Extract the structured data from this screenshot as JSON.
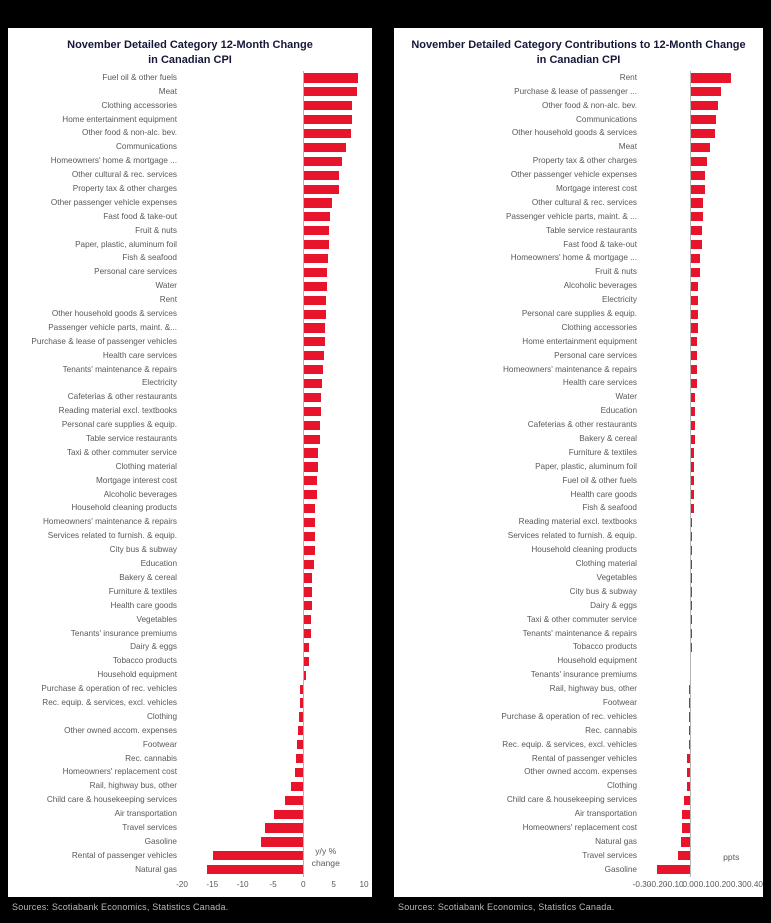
{
  "colors": {
    "bar": "#e8142c",
    "title": "#17173b",
    "label": "#595959",
    "zero_line": "#b3b3b3",
    "source": "#b8b8b8",
    "panel_bg": "#ffffff",
    "page_bg": "#000000"
  },
  "chart_data": [
    {
      "type": "bar",
      "orientation": "horizontal",
      "title": "November Detailed Category 12-Month Change in Canadian CPI",
      "xlabel": "y/y % change",
      "xlabel_lines": [
        "y/y %",
        "change"
      ],
      "xlim": [
        -20,
        10
      ],
      "grid": false,
      "legend": "none",
      "ticks": [
        {
          "v": -20,
          "label": "-20"
        },
        {
          "v": -15,
          "label": "-15"
        },
        {
          "v": -10,
          "label": "-10"
        },
        {
          "v": -5,
          "label": "-5"
        },
        {
          "v": 0,
          "label": "0"
        },
        {
          "v": 5,
          "label": "5"
        },
        {
          "v": 10,
          "label": "10"
        }
      ],
      "categories": [
        "Fuel oil & other fuels",
        "Meat",
        "Clothing accessories",
        "Home entertainment equipment",
        "Other food & non-alc. bev.",
        "Communications",
        "Homeowners' home & mortgage ...",
        "Other cultural & rec. services",
        "Property tax & other charges",
        "Other passenger vehicle expenses",
        "Fast food & take-out",
        "Fruit & nuts",
        "Paper, plastic, aluminum foil",
        "Fish & seafood",
        "Personal care services",
        "Water",
        "Rent",
        "Other household goods & services",
        "Passenger vehicle parts, maint. &...",
        "Purchase & lease of passenger vehicles",
        "Health care services",
        "Tenants' maintenance & repairs",
        "Electricity",
        "Cafeterias & other restaurants",
        "Reading material excl. textbooks",
        "Personal care supplies & equip.",
        "Table service restaurants",
        "Taxi & other commuter service",
        "Clothing material",
        "Mortgage interest cost",
        "Alcoholic beverages",
        "Household cleaning products",
        "Homeowners' maintenance & repairs",
        "Services related to furnish. & equip.",
        "City bus & subway",
        "Education",
        "Bakery & cereal",
        "Furniture & textiles",
        "Health care goods",
        "Vegetables",
        "Tenants' insurance premiums",
        "Dairy & eggs",
        "Tobacco products",
        "Household equipment",
        "Purchase & operation of rec. vehicles",
        "Rec. equip. & services, excl. vehicles",
        "Clothing",
        "Other owned accom. expenses",
        "Footwear",
        "Rec. cannabis",
        "Homeowners' replacement cost",
        "Rail, highway bus, other",
        "Child care & housekeeping services",
        "Air transportation",
        "Travel services",
        "Gasoline",
        "Rental of passenger vehicles",
        "Natural gas"
      ],
      "values": [
        9.0,
        8.8,
        8.1,
        8.1,
        7.8,
        7.1,
        6.3,
        5.9,
        5.8,
        4.7,
        4.4,
        4.2,
        4.2,
        4.1,
        3.9,
        3.9,
        3.7,
        3.7,
        3.6,
        3.6,
        3.4,
        3.2,
        3.1,
        2.9,
        2.9,
        2.7,
        2.7,
        2.5,
        2.4,
        2.2,
        2.2,
        2.0,
        2.0,
        1.9,
        1.9,
        1.7,
        1.5,
        1.5,
        1.4,
        1.2,
        1.2,
        1.0,
        1.0,
        0.5,
        -0.5,
        -0.5,
        -0.7,
        -0.8,
        -1.0,
        -1.2,
        -1.4,
        -2.0,
        -3.1,
        -4.9,
        -6.3,
        -6.9,
        -14.9,
        -15.9
      ],
      "source": "Sources: Scotiabank Economics, Statistics Canada."
    },
    {
      "type": "bar",
      "orientation": "horizontal",
      "title": "November Detailed Category Contributions to 12-Month Change in Canadian CPI",
      "xlabel": "ppts",
      "xlabel_lines": [
        "ppts"
      ],
      "xlim": [
        -0.3,
        0.4
      ],
      "grid": false,
      "legend": "none",
      "ticks": [
        {
          "v": -0.3,
          "label": "-0.30"
        },
        {
          "v": -0.2,
          "label": "-0.20"
        },
        {
          "v": -0.1,
          "label": "-0.10"
        },
        {
          "v": 0.0,
          "label": "0.00"
        },
        {
          "v": 0.1,
          "label": "0.10"
        },
        {
          "v": 0.2,
          "label": "0.20"
        },
        {
          "v": 0.3,
          "label": "0.30"
        },
        {
          "v": 0.4,
          "label": "0.40"
        }
      ],
      "categories": [
        "Rent",
        "Purchase & lease of passenger ...",
        "Other food & non-alc. bev.",
        "Communications",
        "Other household goods & services",
        "Meat",
        "Property tax & other charges",
        "Other passenger vehicle expenses",
        "Mortgage interest cost",
        "Other cultural & rec. services",
        "Passenger vehicle parts, maint. & ...",
        "Table service restaurants",
        "Fast food & take-out",
        "Homeowners' home & mortgage ...",
        "Fruit & nuts",
        "Alcoholic beverages",
        "Electricity",
        "Personal care supplies & equip.",
        "Clothing accessories",
        "Home entertainment equipment",
        "Personal care services",
        "Homeowners' maintenance & repairs",
        "Health care services",
        "Water",
        "Education",
        "Cafeterias & other restaurants",
        "Bakery & cereal",
        "Furniture & textiles",
        "Paper, plastic, aluminum foil",
        "Fuel oil & other fuels",
        "Health care goods",
        "Fish & seafood",
        "Reading material excl. textbooks",
        "Services related to furnish. & equip.",
        "Household cleaning products",
        "Clothing material",
        "Vegetables",
        "City bus & subway",
        "Dairy & eggs",
        "Taxi & other commuter service",
        "Tenants' maintenance & repairs",
        "Tobacco products",
        "Household equipment",
        "Tenants' insurance premiums",
        "Rail, highway bus, other",
        "Footwear",
        "Purchase & operation of rec. vehicles",
        "Rec. cannabis",
        "Rec. equip. & services, excl. vehicles",
        "Rental of passenger vehicles",
        "Other owned accom. expenses",
        "Clothing",
        "Child care & housekeeping services",
        "Air transportation",
        "Homeowners' replacement cost",
        "Natural gas",
        "Travel services",
        "Gasoline"
      ],
      "values": [
        0.25,
        0.19,
        0.17,
        0.16,
        0.15,
        0.12,
        0.1,
        0.09,
        0.09,
        0.08,
        0.08,
        0.07,
        0.07,
        0.06,
        0.06,
        0.05,
        0.05,
        0.05,
        0.05,
        0.04,
        0.04,
        0.04,
        0.04,
        0.03,
        0.03,
        0.03,
        0.03,
        0.02,
        0.02,
        0.02,
        0.02,
        0.02,
        0.01,
        0.01,
        0.01,
        0.01,
        0.01,
        0.01,
        0.01,
        0.01,
        0.01,
        0.01,
        0.005,
        0.005,
        -0.01,
        -0.01,
        -0.01,
        -0.01,
        -0.01,
        -0.02,
        -0.02,
        -0.02,
        -0.04,
        -0.05,
        -0.05,
        -0.06,
        -0.08,
        -0.21
      ],
      "source": "Sources: Scotiabank Economics, Statistics Canada."
    }
  ]
}
